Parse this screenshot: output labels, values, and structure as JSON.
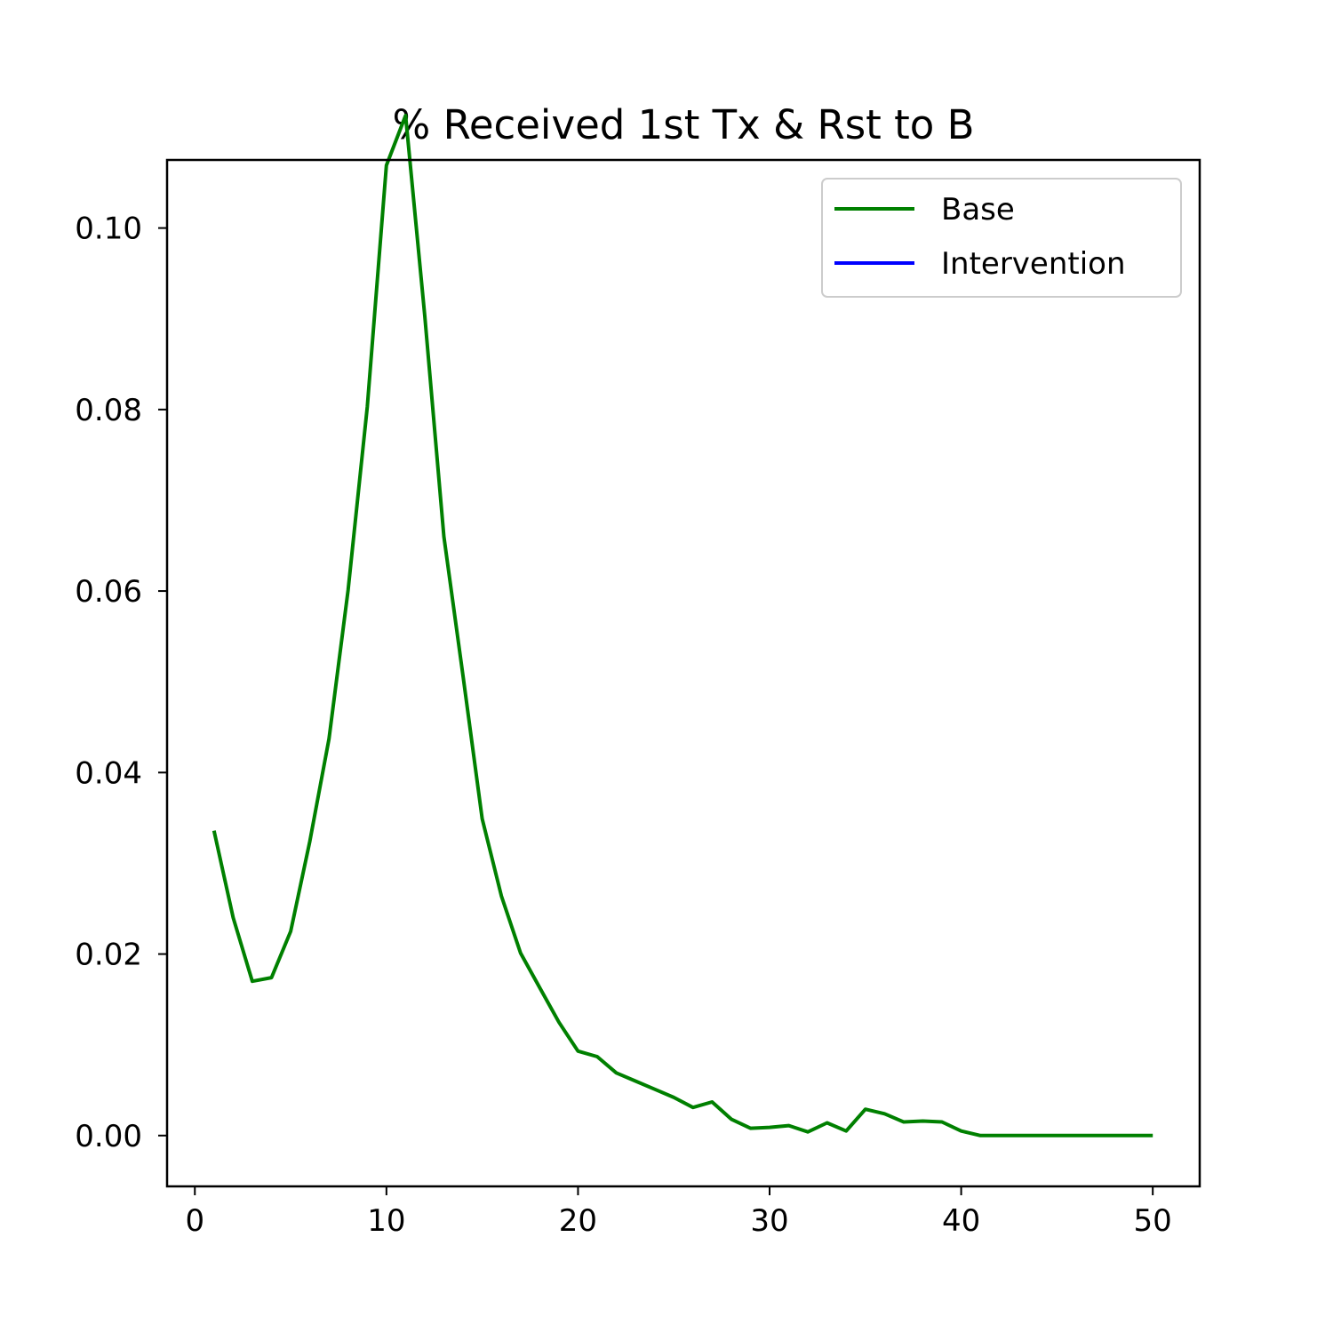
{
  "chart_data": {
    "type": "line",
    "title": "% Received 1st Tx & Rst to B",
    "xlabel": "",
    "ylabel": "",
    "xlim": [
      -1.45,
      52.45
    ],
    "ylim": [
      -0.0056,
      0.1075
    ],
    "xticks": [
      0,
      10,
      20,
      30,
      40,
      50
    ],
    "xtick_labels": [
      "0",
      "10",
      "20",
      "30",
      "40",
      "50"
    ],
    "yticks": [
      0.0,
      0.02,
      0.04,
      0.06,
      0.08,
      0.1
    ],
    "ytick_labels": [
      "0.00",
      "0.02",
      "0.04",
      "0.06",
      "0.08",
      "0.10"
    ],
    "grid": false,
    "legend_position": "top-right",
    "series": [
      {
        "name": "Base",
        "color": "#008000",
        "x": [
          1,
          2,
          3,
          4,
          5,
          6,
          7,
          8,
          9,
          10,
          11,
          12,
          13,
          14,
          15,
          16,
          17,
          18,
          19,
          20,
          21,
          22,
          23,
          24,
          25,
          26,
          27,
          28,
          29,
          30,
          31,
          32,
          33,
          34,
          35,
          36,
          37,
          38,
          39,
          40,
          41,
          42,
          43,
          44,
          45,
          46,
          47,
          48,
          49,
          50
        ],
        "y": [
          0.0336,
          0.024,
          0.017,
          0.0174,
          0.0225,
          0.0324,
          0.0437,
          0.0601,
          0.0803,
          0.1069,
          0.1124,
          0.0903,
          0.066,
          0.0506,
          0.0349,
          0.0264,
          0.0201,
          0.0163,
          0.0125,
          0.0093,
          0.0087,
          0.0069,
          0.006,
          0.0051,
          0.0042,
          0.0031,
          0.0037,
          0.0018,
          0.0008,
          0.0009,
          0.0011,
          0.0004,
          0.0014,
          0.0005,
          0.0029,
          0.0024,
          0.0015,
          0.0016,
          0.0015,
          0.0005,
          0.0,
          0.0,
          0.0,
          0.0,
          0.0,
          0.0,
          0.0,
          0.0,
          0.0,
          0.0
        ]
      },
      {
        "name": "Intervention",
        "color": "#0000ff",
        "x": [],
        "y": []
      }
    ]
  }
}
